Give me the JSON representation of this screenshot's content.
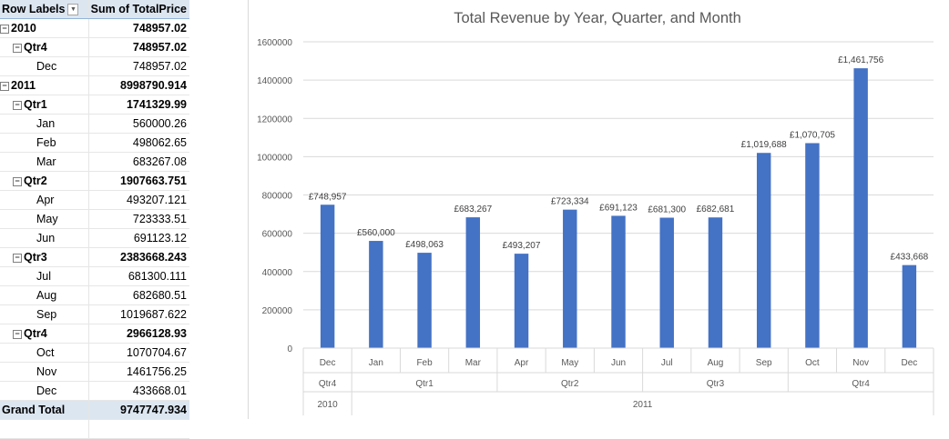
{
  "pivot": {
    "header": {
      "row_labels": "Row Labels",
      "sum_label": "Sum of TotalPrice",
      "filter_icon": "dropdown-arrow-icon"
    },
    "rows": [
      {
        "level": "year",
        "label": "2010",
        "value": "748957.02"
      },
      {
        "level": "qtr",
        "label": "Qtr4",
        "value": "748957.02"
      },
      {
        "level": "month",
        "label": "Dec",
        "value": "748957.02"
      },
      {
        "level": "year",
        "label": "2011",
        "value": "8998790.914"
      },
      {
        "level": "qtr",
        "label": "Qtr1",
        "value": "1741329.99"
      },
      {
        "level": "month",
        "label": "Jan",
        "value": "560000.26"
      },
      {
        "level": "month",
        "label": "Feb",
        "value": "498062.65"
      },
      {
        "level": "month",
        "label": "Mar",
        "value": "683267.08"
      },
      {
        "level": "qtr",
        "label": "Qtr2",
        "value": "1907663.751"
      },
      {
        "level": "month",
        "label": "Apr",
        "value": "493207.121"
      },
      {
        "level": "month",
        "label": "May",
        "value": "723333.51"
      },
      {
        "level": "month",
        "label": "Jun",
        "value": "691123.12"
      },
      {
        "level": "qtr",
        "label": "Qtr3",
        "value": "2383668.243"
      },
      {
        "level": "month",
        "label": "Jul",
        "value": "681300.111"
      },
      {
        "level": "month",
        "label": "Aug",
        "value": "682680.51"
      },
      {
        "level": "month",
        "label": "Sep",
        "value": "1019687.622"
      },
      {
        "level": "qtr",
        "label": "Qtr4",
        "value": "2966128.93"
      },
      {
        "level": "month",
        "label": "Oct",
        "value": "1070704.67"
      },
      {
        "level": "month",
        "label": "Nov",
        "value": "1461756.25"
      },
      {
        "level": "month",
        "label": "Dec",
        "value": "433668.01"
      }
    ],
    "total": {
      "label": "Grand Total",
      "value": "9747747.934"
    }
  },
  "chart_data": {
    "type": "bar",
    "title": "Total Revenue by Year, Quarter, and Month",
    "xlabel": "",
    "ylabel": "",
    "ylim": [
      0,
      1600000
    ],
    "yticks": [
      0,
      200000,
      400000,
      600000,
      800000,
      1000000,
      1200000,
      1400000,
      1600000
    ],
    "grid": true,
    "legend": "none",
    "bar_color": "#4472c4",
    "categories": [
      "Dec",
      "Jan",
      "Feb",
      "Mar",
      "Apr",
      "May",
      "Jun",
      "Jul",
      "Aug",
      "Sep",
      "Oct",
      "Nov",
      "Dec"
    ],
    "values": [
      748957.02,
      560000.26,
      498062.65,
      683267.08,
      493207.121,
      723333.51,
      691123.12,
      681300.111,
      682680.51,
      1019687.622,
      1070704.67,
      1461756.25,
      433668.01
    ],
    "data_labels": [
      "£748,957",
      "£560,000",
      "£498,063",
      "£683,267",
      "£493,207",
      "£723,334",
      "£691,123",
      "£681,300",
      "£682,681",
      "£1,019,688",
      "£1,070,705",
      "£1,461,756",
      "£433,668"
    ],
    "quarters": [
      {
        "label": "Qtr4",
        "span": 1
      },
      {
        "label": "Qtr1",
        "span": 3
      },
      {
        "label": "Qtr2",
        "span": 3
      },
      {
        "label": "Qtr3",
        "span": 3
      },
      {
        "label": "Qtr4",
        "span": 3
      }
    ],
    "years": [
      {
        "label": "2010",
        "span": 1
      },
      {
        "label": "2011",
        "span": 12
      }
    ]
  }
}
